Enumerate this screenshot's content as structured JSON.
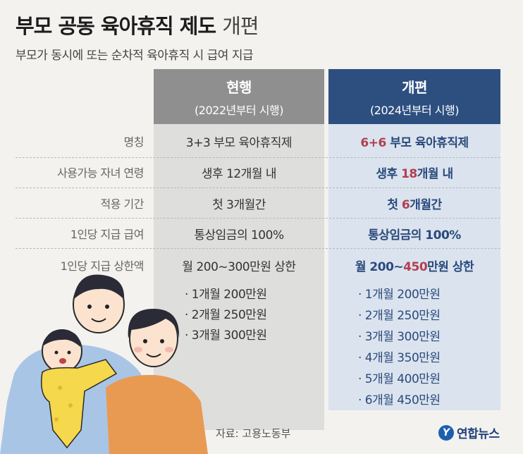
{
  "title": {
    "main": "부모 공동 육아휴직 제도",
    "light": "개편"
  },
  "subtitle": "부모가 동시에 또는 순차적 육아휴직 시 급여 지급",
  "columns": {
    "current": {
      "title": "현행",
      "sub": "(2022년부터 시행)"
    },
    "reform": {
      "title": "개편",
      "sub": "(2024년부터 시행)"
    }
  },
  "rows": [
    {
      "label": "명칭",
      "current": "3+3 부모 육아휴직제",
      "reform_pre": "",
      "reform_hl": "6+6",
      "reform_post": " 부모 육아휴직제"
    },
    {
      "label": "사용가능 자녀 연령",
      "current": "생후 12개월 내",
      "reform_pre": "생후 ",
      "reform_hl": "18",
      "reform_post": "개월 내"
    },
    {
      "label": "적용 기간",
      "current": "첫 3개월간",
      "reform_pre": "첫 ",
      "reform_hl": "6",
      "reform_post": "개월간"
    },
    {
      "label": "1인당 지급 급여",
      "current": "통상임금의 100%",
      "reform_pre": "통상임금의 100%",
      "reform_hl": "",
      "reform_post": ""
    },
    {
      "label": "1인당 지급 상한액",
      "current": "월 200~300만원 상한",
      "reform_pre": "월 200~",
      "reform_hl": "450",
      "reform_post": "만원 상한"
    }
  ],
  "current_list": [
    "· 1개월 200만원",
    "· 2개월 250만원",
    "· 3개월 300만원"
  ],
  "reform_list": [
    "· 1개월 200만원",
    "· 2개월 250만원",
    "· 3개월 300만원",
    "· 4개월 350만원",
    "· 5개월 400만원",
    "· 6개월 450만원"
  ],
  "source": "자료: 고용노동부",
  "logo": {
    "mark": "Y",
    "name": "연합뉴스"
  }
}
